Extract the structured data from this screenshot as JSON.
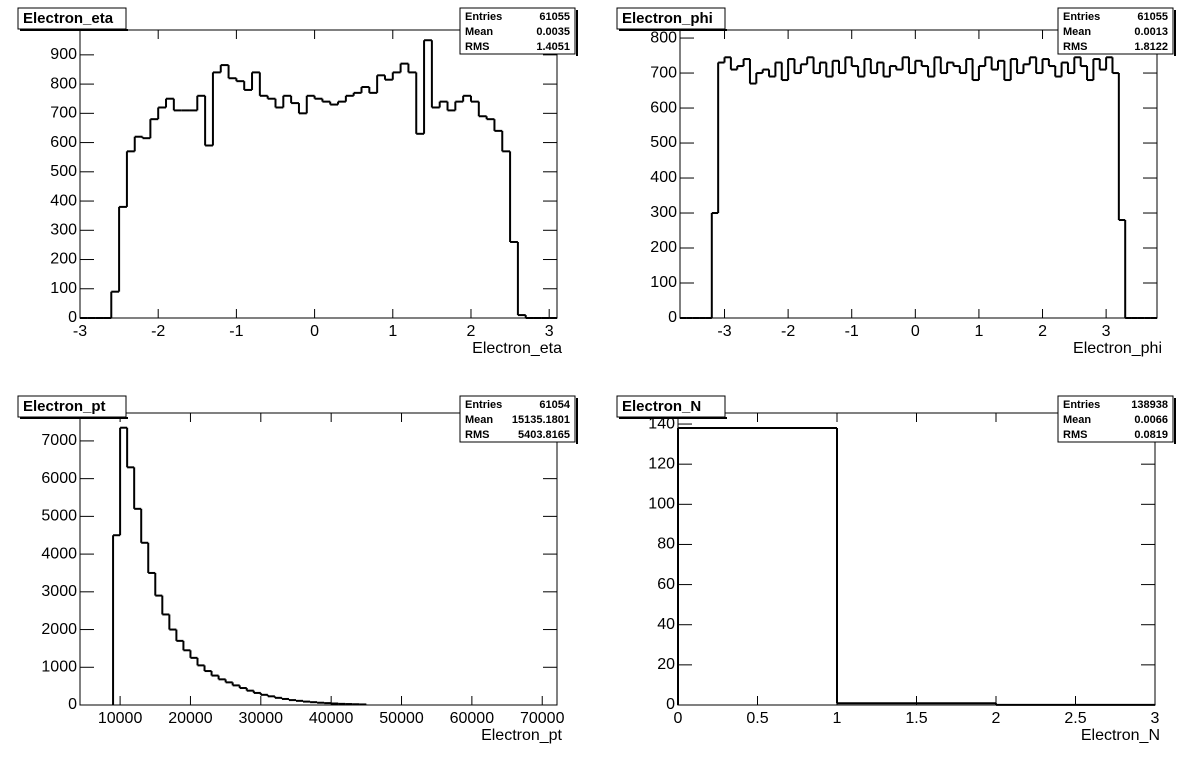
{
  "chart_data": [
    {
      "type": "histogram",
      "title": "Electron_eta",
      "x_label": "Electron_eta",
      "color": "#000000",
      "bins": [
        -3.0,
        -2.9,
        -2.8,
        -2.7,
        -2.6,
        -2.5,
        -2.4,
        -2.3,
        -2.2,
        -2.1,
        -2.0,
        -1.9,
        -1.8,
        -1.7,
        -1.6,
        -1.5,
        -1.4,
        -1.3,
        -1.2,
        -1.1,
        -1.0,
        -0.9,
        -0.8,
        -0.7,
        -0.6,
        -0.5,
        -0.4,
        -0.3,
        -0.2,
        -0.1,
        0.0,
        0.1,
        0.2,
        0.3,
        0.4,
        0.5,
        0.6,
        0.7,
        0.8,
        0.9,
        1.0,
        1.1,
        1.2,
        1.3,
        1.4,
        1.5,
        1.6,
        1.7,
        1.8,
        1.9,
        2.0,
        2.1,
        2.2,
        2.3,
        2.4,
        2.5,
        2.6,
        2.7,
        2.8,
        2.9,
        3.0,
        3.1
      ],
      "values": [
        0,
        0,
        0,
        0,
        90,
        380,
        570,
        620,
        615,
        680,
        720,
        750,
        710,
        710,
        710,
        760,
        590,
        840,
        865,
        820,
        810,
        780,
        840,
        760,
        750,
        720,
        760,
        735,
        700,
        760,
        750,
        740,
        730,
        740,
        760,
        770,
        790,
        770,
        830,
        815,
        840,
        870,
        840,
        630,
        950,
        720,
        740,
        710,
        740,
        760,
        740,
        690,
        680,
        640,
        570,
        260,
        10,
        0,
        0,
        0,
        0
      ],
      "xlim": [
        -3.0,
        3.1
      ],
      "ylim": [
        0,
        985
      ],
      "xticks": [
        -3,
        -2,
        -1,
        0,
        1,
        2,
        3
      ],
      "yticks": [
        0,
        100,
        200,
        300,
        400,
        500,
        600,
        700,
        800,
        900
      ],
      "stats": [
        {
          "label": "Entries",
          "value": 61055
        },
        {
          "label": "Mean",
          "value": 0.0035
        },
        {
          "label": "RMS",
          "value": 1.4051
        }
      ]
    },
    {
      "type": "histogram",
      "title": "Electron_phi",
      "x_label": "Electron_phi",
      "color": "#000000",
      "bins": [
        -3.7,
        -3.6,
        -3.5,
        -3.4,
        -3.3,
        -3.2,
        -3.1,
        -3.0,
        -2.9,
        -2.8,
        -2.7,
        -2.6,
        -2.5,
        -2.4,
        -2.3,
        -2.2,
        -2.1,
        -2.0,
        -1.9,
        -1.8,
        -1.7,
        -1.6,
        -1.5,
        -1.4,
        -1.3,
        -1.2,
        -1.1,
        -1.0,
        -0.9,
        -0.8,
        -0.7,
        -0.6,
        -0.5,
        -0.4,
        -0.3,
        -0.2,
        -0.1,
        0.0,
        0.1,
        0.2,
        0.3,
        0.4,
        0.5,
        0.6,
        0.7,
        0.8,
        0.9,
        1.0,
        1.1,
        1.2,
        1.3,
        1.4,
        1.5,
        1.6,
        1.7,
        1.8,
        1.9,
        2.0,
        2.1,
        2.2,
        2.3,
        2.4,
        2.5,
        2.6,
        2.7,
        2.8,
        2.9,
        3.0,
        3.1,
        3.2,
        3.3,
        3.4,
        3.5,
        3.6,
        3.7,
        3.8
      ],
      "values": [
        0,
        0,
        0,
        0,
        0,
        300,
        730,
        745,
        710,
        720,
        740,
        670,
        700,
        710,
        690,
        730,
        680,
        740,
        700,
        725,
        745,
        700,
        730,
        690,
        735,
        700,
        745,
        720,
        690,
        740,
        700,
        730,
        690,
        720,
        710,
        745,
        700,
        735,
        720,
        690,
        745,
        700,
        730,
        720,
        700,
        740,
        680,
        720,
        745,
        710,
        735,
        680,
        740,
        700,
        725,
        745,
        700,
        740,
        720,
        690,
        730,
        700,
        745,
        720,
        680,
        740,
        710,
        745,
        700,
        280,
        0,
        0,
        0,
        0,
        0
      ],
      "xlim": [
        -3.7,
        3.8
      ],
      "ylim": [
        0,
        823
      ],
      "xticks": [
        -3,
        -2,
        -1,
        0,
        1,
        2,
        3
      ],
      "yticks": [
        0,
        100,
        200,
        300,
        400,
        500,
        600,
        700,
        800
      ],
      "stats": [
        {
          "label": "Entries",
          "value": 61055
        },
        {
          "label": "Mean",
          "value": 0.0013
        },
        {
          "label": "RMS",
          "value": 1.8122
        }
      ]
    },
    {
      "type": "histogram",
      "title": "Electron_pt",
      "x_label": "Electron_pt",
      "color": "#000000",
      "bins": [
        9000,
        10000,
        11000,
        12000,
        13000,
        14000,
        15000,
        16000,
        17000,
        18000,
        19000,
        20000,
        21000,
        22000,
        23000,
        24000,
        25000,
        26000,
        27000,
        28000,
        29000,
        30000,
        31000,
        32000,
        33000,
        34000,
        35000,
        36000,
        37000,
        38000,
        39000,
        40000,
        41000,
        42000,
        43000,
        44000,
        45000
      ],
      "values": [
        4500,
        7350,
        6300,
        5200,
        4300,
        3500,
        2900,
        2400,
        2000,
        1700,
        1450,
        1250,
        1050,
        900,
        780,
        680,
        600,
        520,
        450,
        380,
        320,
        270,
        230,
        190,
        160,
        130,
        110,
        90,
        75,
        60,
        50,
        40,
        30,
        25,
        20,
        15
      ],
      "xlim": [
        4300,
        72100
      ],
      "ylim": [
        0,
        7740
      ],
      "xticks": [
        10000,
        20000,
        30000,
        40000,
        50000,
        60000,
        70000
      ],
      "yticks": [
        0,
        1000,
        2000,
        3000,
        4000,
        5000,
        6000,
        7000
      ],
      "stats": [
        {
          "label": "Entries",
          "value": 61054
        },
        {
          "label": "Mean",
          "value": 15135.1801
        },
        {
          "label": "RMS",
          "value": 5403.8165
        }
      ]
    },
    {
      "type": "histogram",
      "title": "Electron_N",
      "x_label": "Electron_N",
      "color": "#000000",
      "bins": [
        0,
        1,
        2,
        3
      ],
      "values": [
        138,
        0.9,
        0.05
      ],
      "xlim": [
        0,
        3
      ],
      "ylim": [
        0,
        145.5
      ],
      "xticks": [
        0,
        0.5,
        1,
        1.5,
        2,
        2.5,
        3
      ],
      "yticks": [
        0,
        20,
        40,
        60,
        80,
        100,
        120,
        140
      ],
      "stats": [
        {
          "label": "Entries",
          "value": 138938
        },
        {
          "label": "Mean",
          "value": 0.0066
        },
        {
          "label": "RMS",
          "value": 0.0819
        }
      ]
    }
  ]
}
